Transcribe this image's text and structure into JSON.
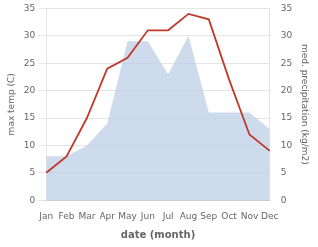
{
  "chart_data": {
    "type": "line",
    "categories": [
      "Jan",
      "Feb",
      "Mar",
      "Apr",
      "May",
      "Jun",
      "Jul",
      "Aug",
      "Sep",
      "Oct",
      "Nov",
      "Dec"
    ],
    "series": [
      {
        "type": "area",
        "color": "#b8cce4",
        "values": [
          8,
          8,
          10,
          14,
          29,
          29,
          23,
          30,
          16,
          16,
          16,
          13
        ]
      },
      {
        "type": "line",
        "color": "#c0392b",
        "values": [
          5,
          8,
          15,
          24,
          26,
          31,
          31,
          34,
          33,
          22,
          12,
          9
        ]
      }
    ],
    "xlabel": "date (month)",
    "ylabel": "max temp (C)",
    "y2label": "med. precipitation (kg/m2)",
    "ylim": [
      0,
      35
    ],
    "yticks": [
      0,
      5,
      10,
      15,
      20,
      25,
      30,
      35
    ],
    "y2lim": [
      0,
      35
    ],
    "y2ticks": [
      0,
      5,
      10,
      15,
      20,
      25,
      30,
      35
    ],
    "grid": "y"
  }
}
